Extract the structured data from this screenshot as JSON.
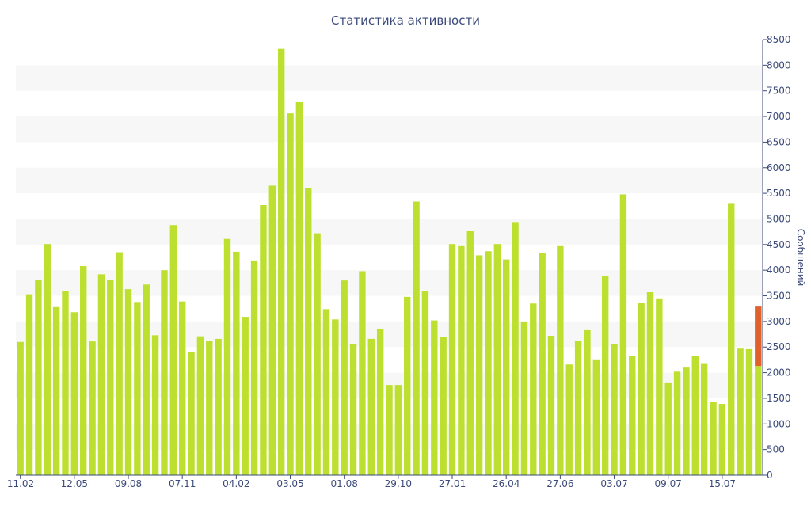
{
  "chart_data": {
    "type": "bar",
    "title": "Статистика активности",
    "xlabel": "",
    "ylabel": "Сообщений",
    "ylim": [
      0,
      8500
    ],
    "yticks": [
      0,
      500,
      1000,
      1500,
      2000,
      2500,
      3000,
      3500,
      4000,
      4500,
      5000,
      5500,
      6000,
      6500,
      7000,
      7500,
      8000,
      8500
    ],
    "y_axis_side": "right",
    "grid": "alternating horizontal bands",
    "legend": "none",
    "colors": {
      "bar": "#bde030",
      "highlight": "#e0622a",
      "band": "#f7f7f7",
      "text": "#3b4a7a",
      "axis": "#3b4a7a"
    },
    "x_tick_labels": [
      {
        "label": "11.02",
        "index": 0
      },
      {
        "label": "12.05",
        "index": 6
      },
      {
        "label": "09.08",
        "index": 12
      },
      {
        "label": "07.11",
        "index": 18
      },
      {
        "label": "04.02",
        "index": 24
      },
      {
        "label": "03.05",
        "index": 30
      },
      {
        "label": "01.08",
        "index": 36
      },
      {
        "label": "29.10",
        "index": 42
      },
      {
        "label": "27.01",
        "index": 48
      },
      {
        "label": "26.04",
        "index": 54
      },
      {
        "label": "27.06",
        "index": 60
      },
      {
        "label": "03.07",
        "index": 66
      },
      {
        "label": "09.07",
        "index": 72
      },
      {
        "label": "15.07",
        "index": 78
      }
    ],
    "values": [
      2600,
      3530,
      3810,
      4510,
      3280,
      3600,
      3180,
      4080,
      2610,
      3920,
      3810,
      4350,
      3630,
      3380,
      3720,
      2730,
      4000,
      4880,
      3390,
      2400,
      2710,
      2620,
      2660,
      4610,
      4360,
      3090,
      4190,
      5270,
      5650,
      8320,
      7060,
      7280,
      5610,
      4720,
      3240,
      3040,
      3800,
      2560,
      3980,
      2660,
      2860,
      1760,
      1760,
      3480,
      5340,
      3600,
      3020,
      2700,
      4510,
      4470,
      4760,
      4290,
      4370,
      4510,
      4210,
      4940,
      3000,
      3350,
      4330,
      2720,
      4470,
      2160,
      2620,
      2830,
      2260,
      3880,
      2560,
      5480,
      2330,
      3360,
      3570,
      3450,
      1810,
      2020,
      2100,
      2330,
      2170,
      1430,
      1390,
      5310,
      2470,
      2460,
      2130
    ],
    "highlight": {
      "index": 82,
      "base": 2130,
      "top": 3290
    }
  }
}
